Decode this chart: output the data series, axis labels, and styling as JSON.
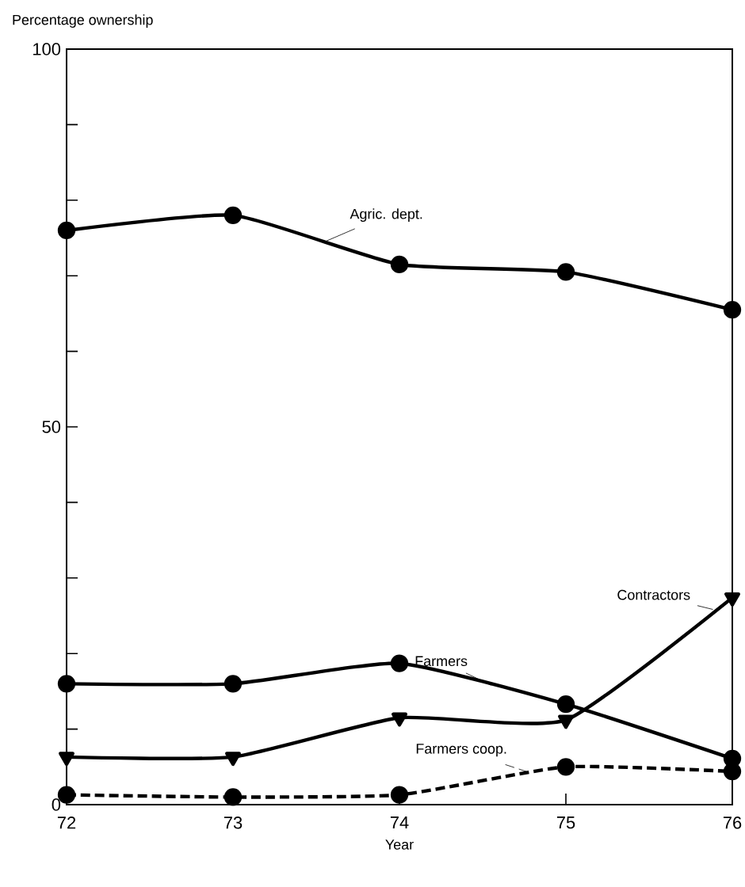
{
  "chart_data": {
    "type": "line",
    "xlabel": "Year",
    "ylabel": "Percentage ownership",
    "x": [
      72,
      73,
      74,
      75,
      76
    ],
    "xlim": [
      72,
      76
    ],
    "xticks": [
      72,
      73,
      74,
      75,
      76
    ],
    "ylim": [
      0,
      100
    ],
    "yticks": [
      0,
      {
        "value": 10,
        "label": null
      },
      {
        "value": 20,
        "label": null
      },
      {
        "value": 30,
        "label": null
      },
      {
        "value": 40,
        "label": null
      },
      50,
      {
        "value": 60,
        "label": null
      },
      {
        "value": 70,
        "label": null
      },
      {
        "value": 80,
        "label": null
      },
      {
        "value": 90,
        "label": null
      },
      100
    ],
    "grid": false,
    "legend": false,
    "series": [
      {
        "name": "Agric. dept.",
        "color": "#000000",
        "marker": "circle",
        "line_style": "solid",
        "values": [
          76,
          78,
          71.5,
          70.5,
          65.5
        ]
      },
      {
        "name": "Farmers",
        "color": "#000000",
        "marker": "circle",
        "line_style": "solid",
        "values": [
          16,
          16,
          18.7,
          13.3,
          6.1
        ]
      },
      {
        "name": "Contractors",
        "color": "#000000",
        "marker": "triangle",
        "line_style": "solid",
        "values": [
          6.3,
          6.3,
          11.5,
          11.2,
          27.4
        ]
      },
      {
        "name": "Farmers coop.",
        "color": "#000000",
        "marker": "circle",
        "line_style": "dashed",
        "values": [
          1.3,
          1,
          1.3,
          5,
          4.4
        ]
      }
    ]
  }
}
